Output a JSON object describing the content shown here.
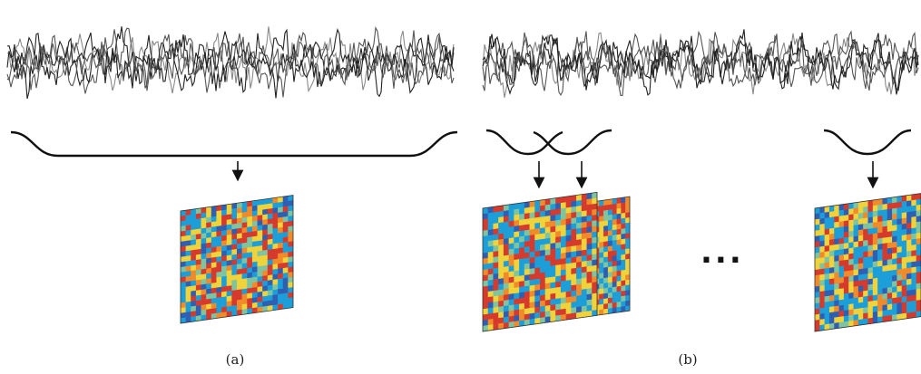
{
  "figure": {
    "panels": [
      {
        "id": "a",
        "label": "(a)",
        "windows": 1,
        "matrices": 1
      },
      {
        "id": "b",
        "label": "(b)",
        "windows": 3,
        "matrices": 3
      }
    ],
    "ellipsis": "...",
    "colors": {
      "signal_dark": "#222222",
      "signal_mid": "#555555",
      "signal_light": "#8a8a8a",
      "brace": "#111111",
      "heat_low": "#1c9fd8",
      "heat_midlow": "#7fc4a0",
      "heat_mid": "#f0d33a",
      "heat_midhigh": "#f08a2a",
      "heat_high": "#d63a2c",
      "heat_deep": "#2f5fb3"
    }
  }
}
